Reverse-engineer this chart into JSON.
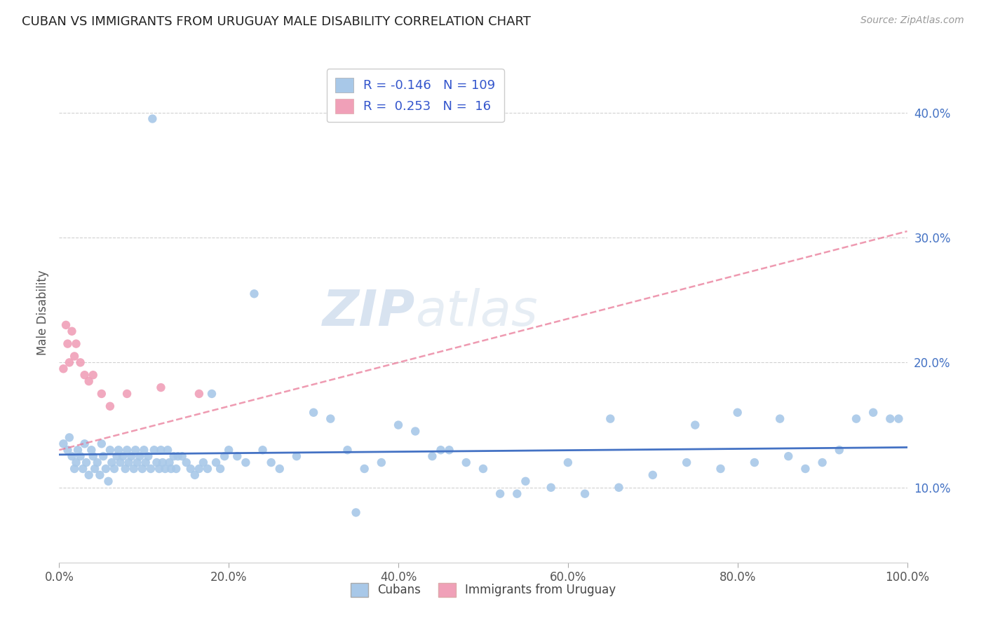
{
  "title": "CUBAN VS IMMIGRANTS FROM URUGUAY MALE DISABILITY CORRELATION CHART",
  "source": "Source: ZipAtlas.com",
  "ylabel": "Male Disability",
  "xlim": [
    0,
    1
  ],
  "ylim": [
    0.04,
    0.44
  ],
  "xtick_labels": [
    "0.0%",
    "20.0%",
    "40.0%",
    "60.0%",
    "80.0%",
    "100.0%"
  ],
  "xtick_vals": [
    0,
    0.2,
    0.4,
    0.6,
    0.8,
    1.0
  ],
  "ytick_labels": [
    "10.0%",
    "20.0%",
    "30.0%",
    "40.0%"
  ],
  "ytick_vals": [
    0.1,
    0.2,
    0.3,
    0.4
  ],
  "cubans_color": "#a8c8e8",
  "uruguay_color": "#f0a0b8",
  "blue_trend_color": "#4472c4",
  "pink_trend_color": "#e87090",
  "legend_text_color": "#3355cc",
  "r_cubans": -0.146,
  "n_cubans": 109,
  "r_uruguay": 0.253,
  "n_uruguay": 16,
  "watermark_zip": "ZIP",
  "watermark_atlas": "atlas",
  "legend_label_cubans": "Cubans",
  "legend_label_uruguay": "Immigrants from Uruguay",
  "cubans_x": [
    0.005,
    0.01,
    0.012,
    0.015,
    0.018,
    0.02,
    0.022,
    0.025,
    0.028,
    0.03,
    0.032,
    0.035,
    0.038,
    0.04,
    0.042,
    0.045,
    0.048,
    0.05,
    0.052,
    0.055,
    0.058,
    0.06,
    0.062,
    0.065,
    0.068,
    0.07,
    0.072,
    0.075,
    0.078,
    0.08,
    0.082,
    0.085,
    0.088,
    0.09,
    0.092,
    0.095,
    0.098,
    0.1,
    0.102,
    0.105,
    0.108,
    0.11,
    0.112,
    0.115,
    0.118,
    0.12,
    0.122,
    0.125,
    0.128,
    0.13,
    0.132,
    0.135,
    0.138,
    0.14,
    0.145,
    0.15,
    0.155,
    0.16,
    0.165,
    0.17,
    0.175,
    0.18,
    0.185,
    0.19,
    0.195,
    0.2,
    0.21,
    0.22,
    0.23,
    0.24,
    0.25,
    0.26,
    0.28,
    0.3,
    0.32,
    0.34,
    0.36,
    0.38,
    0.4,
    0.42,
    0.44,
    0.46,
    0.48,
    0.5,
    0.52,
    0.54,
    0.58,
    0.62,
    0.66,
    0.7,
    0.74,
    0.78,
    0.82,
    0.86,
    0.88,
    0.9,
    0.92,
    0.94,
    0.96,
    0.98,
    0.99,
    0.55,
    0.45,
    0.35,
    0.6,
    0.65,
    0.75,
    0.8,
    0.85
  ],
  "cubans_y": [
    0.135,
    0.13,
    0.14,
    0.125,
    0.115,
    0.12,
    0.13,
    0.125,
    0.115,
    0.135,
    0.12,
    0.11,
    0.13,
    0.125,
    0.115,
    0.12,
    0.11,
    0.135,
    0.125,
    0.115,
    0.105,
    0.13,
    0.12,
    0.115,
    0.125,
    0.13,
    0.12,
    0.125,
    0.115,
    0.13,
    0.12,
    0.125,
    0.115,
    0.13,
    0.12,
    0.125,
    0.115,
    0.13,
    0.12,
    0.125,
    0.115,
    0.395,
    0.13,
    0.12,
    0.115,
    0.13,
    0.12,
    0.115,
    0.13,
    0.12,
    0.115,
    0.125,
    0.115,
    0.125,
    0.125,
    0.12,
    0.115,
    0.11,
    0.115,
    0.12,
    0.115,
    0.175,
    0.12,
    0.115,
    0.125,
    0.13,
    0.125,
    0.12,
    0.255,
    0.13,
    0.12,
    0.115,
    0.125,
    0.16,
    0.155,
    0.13,
    0.115,
    0.12,
    0.15,
    0.145,
    0.125,
    0.13,
    0.12,
    0.115,
    0.095,
    0.095,
    0.1,
    0.095,
    0.1,
    0.11,
    0.12,
    0.115,
    0.12,
    0.125,
    0.115,
    0.12,
    0.13,
    0.155,
    0.16,
    0.155,
    0.155,
    0.105,
    0.13,
    0.08,
    0.12,
    0.155,
    0.15,
    0.16,
    0.155
  ],
  "uruguay_x": [
    0.005,
    0.008,
    0.01,
    0.012,
    0.015,
    0.018,
    0.02,
    0.025,
    0.03,
    0.035,
    0.04,
    0.05,
    0.06,
    0.08,
    0.12,
    0.165
  ],
  "uruguay_y": [
    0.195,
    0.23,
    0.215,
    0.2,
    0.225,
    0.205,
    0.215,
    0.2,
    0.19,
    0.185,
    0.19,
    0.175,
    0.165,
    0.175,
    0.18,
    0.175
  ]
}
